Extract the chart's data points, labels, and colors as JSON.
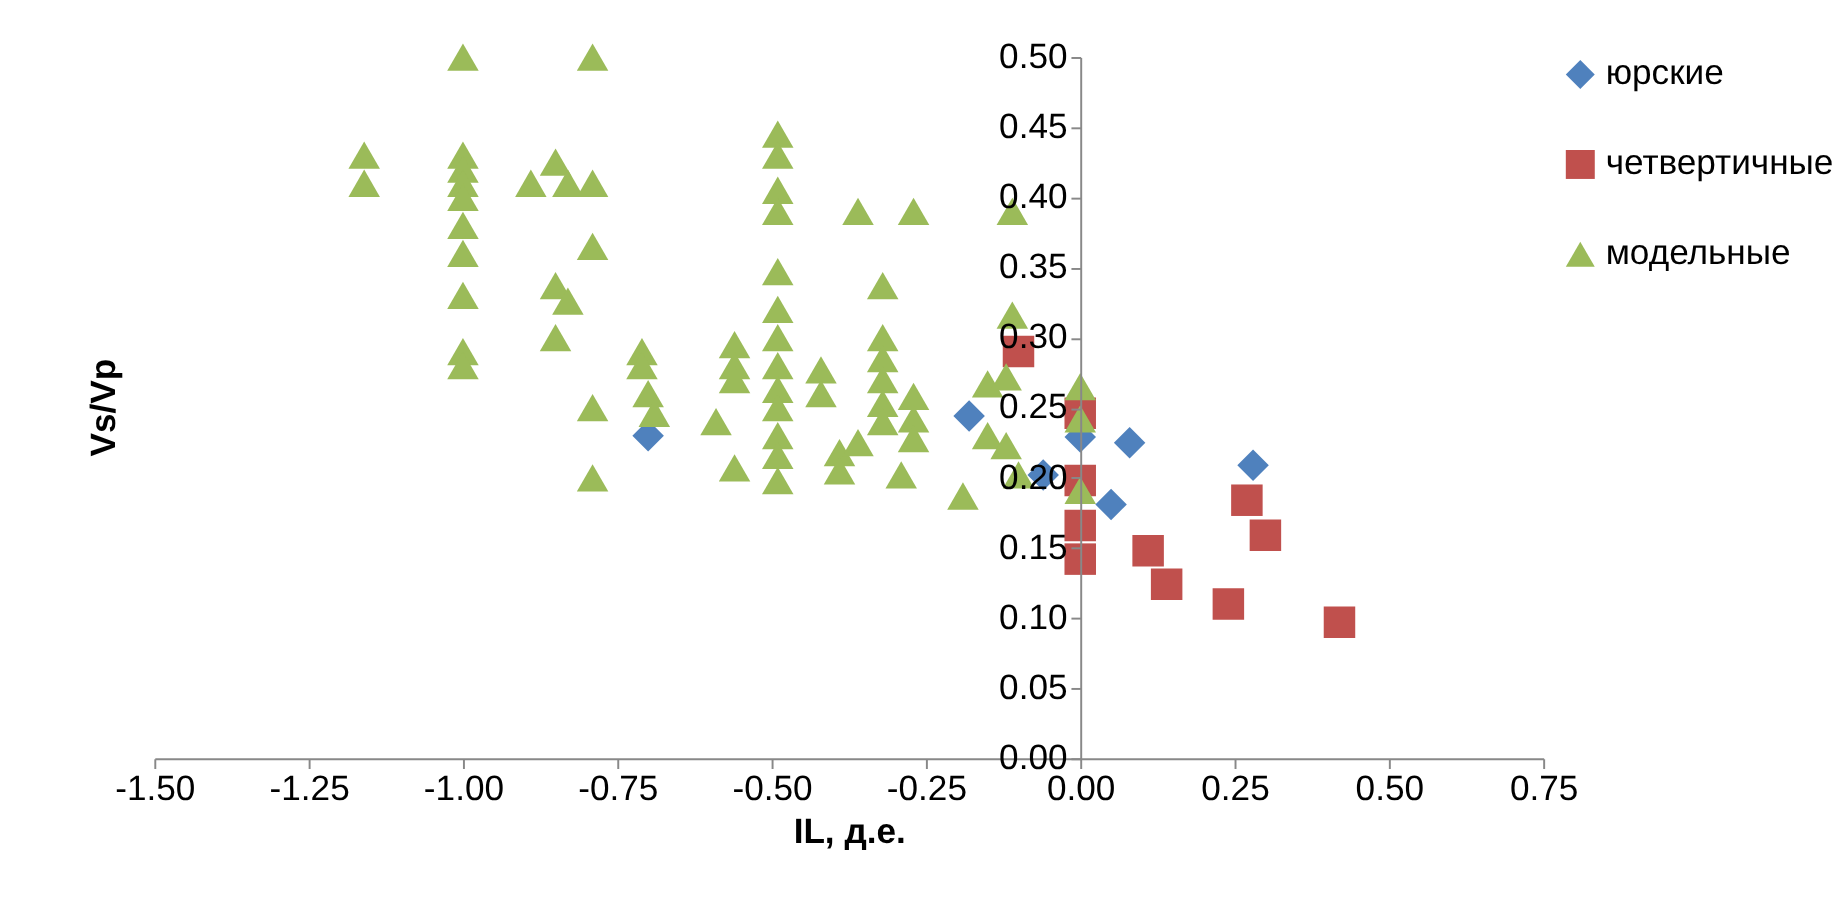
{
  "chart_data": {
    "type": "scatter",
    "xlabel": "IL, д.е.",
    "ylabel": "Vs/Vp",
    "xlim": [
      -1.5,
      0.75
    ],
    "xticks": [
      {
        "value": -1.5,
        "label": "-1.50"
      },
      {
        "value": -1.25,
        "label": "-1.25"
      },
      {
        "value": -1.0,
        "label": "-1.00"
      },
      {
        "value": -0.75,
        "label": "-0.75"
      },
      {
        "value": -0.5,
        "label": "-0.50"
      },
      {
        "value": -0.25,
        "label": "-0.25"
      },
      {
        "value": 0,
        "label": "0.00"
      },
      {
        "value": 0.25,
        "label": "0.25"
      },
      {
        "value": 0.5,
        "label": "0.50"
      },
      {
        "value": 0.75,
        "label": "0.75"
      }
    ],
    "ylim": [
      0,
      0.5
    ],
    "yticks": [
      {
        "value": 0,
        "label": "0.00"
      },
      {
        "value": 0.05,
        "label": "0.05"
      },
      {
        "value": 0.1,
        "label": "0.10"
      },
      {
        "value": 0.15,
        "label": "0.15"
      },
      {
        "value": 0.2,
        "label": "0.20"
      },
      {
        "value": 0.25,
        "label": "0.25"
      },
      {
        "value": 0.3,
        "label": "0.30"
      },
      {
        "value": 0.35,
        "label": "0.35"
      },
      {
        "value": 0.4,
        "label": "0.40"
      },
      {
        "value": 0.45,
        "label": "0.45"
      },
      {
        "value": 0.5,
        "label": "0.50"
      }
    ],
    "grid": false,
    "legend": "right",
    "series": [
      {
        "name": "юрские",
        "color": "#4f81bd",
        "marker": "diamond",
        "x": [
          -0.7,
          0.0,
          0.08,
          0.28,
          0.05,
          -0.06,
          -0.18
        ],
        "values": [
          0.23,
          0.229,
          0.225,
          0.209,
          0.181,
          0.202,
          0.244
        ]
      },
      {
        "name": "четвертичные",
        "color": "#c0504d",
        "marker": "square",
        "x": [
          0.0,
          -0.1,
          0.0,
          0.0,
          0.0,
          0.11,
          0.14,
          0.24,
          0.27,
          0.3,
          0.42
        ],
        "values": [
          0.246,
          0.29,
          0.198,
          0.166,
          0.142,
          0.148,
          0.124,
          0.11,
          0.184,
          0.159,
          0.097
        ]
      },
      {
        "name": "модельные",
        "color": "#9bbb59",
        "marker": "triangle",
        "x": [
          -1.0,
          -0.79,
          -1.16,
          -1.16,
          -1.0,
          -1.0,
          -1.0,
          -1.0,
          -0.89,
          -0.85,
          -0.83,
          -0.79,
          -1.0,
          -1.0,
          -0.79,
          -1.0,
          -0.85,
          -0.83,
          -0.85,
          -1.0,
          -1.0,
          -0.71,
          -0.71,
          -0.7,
          -0.69,
          -0.79,
          -0.79,
          -0.49,
          -0.49,
          -0.49,
          -0.49,
          -0.36,
          -0.27,
          -0.11,
          -0.49,
          -0.32,
          -0.11,
          -0.56,
          -0.56,
          -0.56,
          -0.49,
          -0.49,
          -0.49,
          -0.49,
          -0.49,
          -0.49,
          -0.49,
          -0.49,
          -0.42,
          -0.42,
          -0.32,
          -0.32,
          -0.32,
          -0.32,
          -0.32,
          -0.27,
          -0.27,
          -0.27,
          -0.59,
          -0.56,
          -0.39,
          -0.39,
          -0.36,
          -0.29,
          -0.19,
          -0.15,
          -0.12,
          -0.15,
          -0.12,
          -0.1,
          0.0,
          0.0,
          0.0
        ],
        "values": [
          0.5,
          0.5,
          0.43,
          0.41,
          0.43,
          0.42,
          0.41,
          0.4,
          0.41,
          0.425,
          0.41,
          0.41,
          0.38,
          0.36,
          0.365,
          0.33,
          0.337,
          0.326,
          0.3,
          0.29,
          0.28,
          0.29,
          0.28,
          0.26,
          0.246,
          0.25,
          0.2,
          0.445,
          0.43,
          0.405,
          0.39,
          0.39,
          0.39,
          0.39,
          0.347,
          0.337,
          0.316,
          0.295,
          0.28,
          0.27,
          0.32,
          0.3,
          0.28,
          0.263,
          0.25,
          0.23,
          0.216,
          0.198,
          0.277,
          0.26,
          0.3,
          0.285,
          0.27,
          0.253,
          0.24,
          0.258,
          0.242,
          0.228,
          0.24,
          0.207,
          0.218,
          0.205,
          0.225,
          0.202,
          0.187,
          0.267,
          0.272,
          0.23,
          0.223,
          0.202,
          0.265,
          0.242,
          0.191
        ]
      }
    ]
  }
}
